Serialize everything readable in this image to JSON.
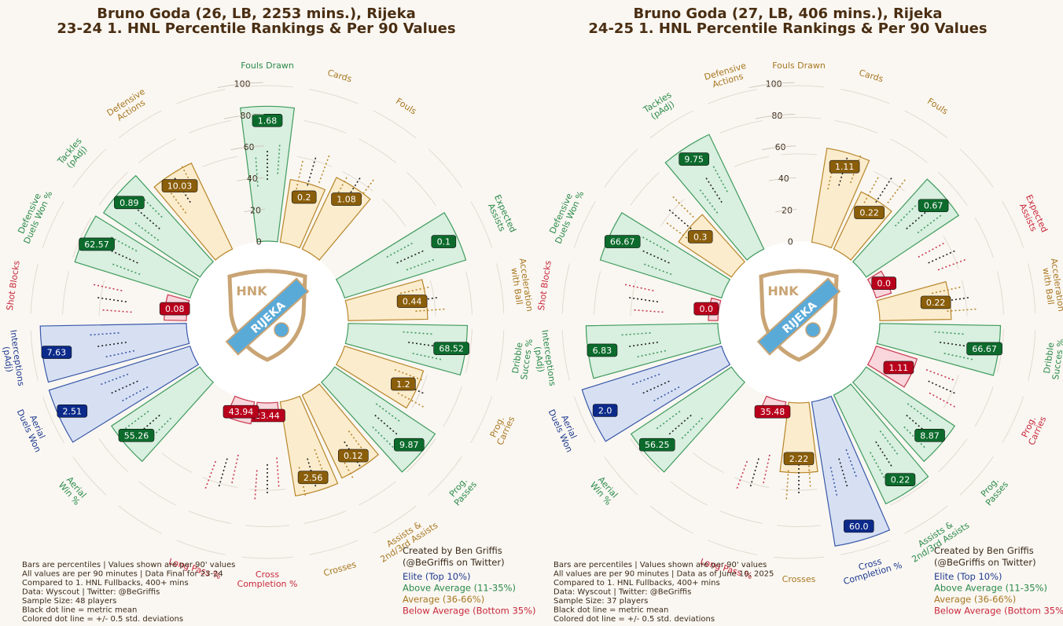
{
  "palette": {
    "elite": {
      "fill": "#d7e0f3",
      "stroke": "#3858a8",
      "text": "#1f3b8f",
      "badge": "#0b2a8a"
    },
    "above": {
      "fill": "#d9efe0",
      "stroke": "#3f9b5d",
      "text": "#2a8a4a",
      "badge": "#0c6b2c"
    },
    "average": {
      "fill": "#fbeccd",
      "stroke": "#b8862a",
      "text": "#a87720",
      "badge": "#8a5e0a"
    },
    "below": {
      "fill": "#f8d6dc",
      "stroke": "#c8384e",
      "text": "#c8283c",
      "badge": "#b8001c"
    }
  },
  "logo": {
    "top": "HNK",
    "band": "RIJEKA",
    "color_outline": "#c9a474",
    "color_band": "#5aaad8"
  },
  "legend": [
    {
      "label": "Elite (Top 10%)",
      "tier": "elite"
    },
    {
      "label": "Above Average (11-35%)",
      "tier": "above"
    },
    {
      "label": "Average (36-66%)",
      "tier": "average"
    },
    {
      "label": "Below Average (Bottom 35%)",
      "tier": "below"
    }
  ],
  "chart_data": [
    {
      "type": "radial_bar",
      "title_line1": "Bruno Goda (26, LB, 2253 mins.), Rijeka",
      "title_line2": "23-24 1. HNL Percentile Rankings & Per 90 Values",
      "radial_ticks": [
        "0",
        "20",
        "40",
        "60",
        "80",
        "100"
      ],
      "footnotes": [
        "Bars are percentiles | Values shown are per 90' values",
        "All values are per 90 minutes | Data Final for 23-24",
        "Compared to 1. HNL Fullbacks, 400+ mins",
        "Data: Wyscout | Twitter: @BeGriffis",
        "Sample Size: 48 players",
        "Black dot line = metric mean",
        "Colored dot line = +/- 0.5 std. deviations"
      ],
      "credit": [
        "Created by Ben Griffis",
        "(@BeGriffis on Twitter)"
      ],
      "metrics": [
        {
          "label": "Fouls Drawn",
          "value": "1.68",
          "percentile": 85,
          "tier": "above"
        },
        {
          "label": "Cards",
          "value": "0.2",
          "percentile": 40,
          "tier": "average"
        },
        {
          "label": "Fouls",
          "value": "1.08",
          "percentile": 50,
          "tier": "average"
        },
        {
          "label": "",
          "value": "",
          "percentile": 0,
          "tier": "average"
        },
        {
          "label": "Expected Assists",
          "value": "0.1",
          "percentile": 80,
          "tier": "above"
        },
        {
          "label": "Acceleration with Ball",
          "value": "0.44",
          "percentile": 50,
          "tier": "average"
        },
        {
          "label": "Dribble Succes %",
          "value": "68.52",
          "percentile": 75,
          "tier": "above"
        },
        {
          "label": "Prog. Carries",
          "value": "1.2",
          "percentile": 52,
          "tier": "average"
        },
        {
          "label": "Prog. Passes",
          "value": "9.87",
          "percentile": 76,
          "tier": "above"
        },
        {
          "label": "Assists & 2nd/3rd Assists",
          "value": "0.12",
          "percentile": 58,
          "tier": "average"
        },
        {
          "label": "Crosses",
          "value": "2.56",
          "percentile": 60,
          "tier": "average"
        },
        {
          "label": "Cross Completion %",
          "value": "23.44",
          "percentile": 8,
          "tier": "below"
        },
        {
          "label": "Long Pass %",
          "value": "43.94",
          "percentile": 14,
          "tier": "below"
        },
        {
          "label": "",
          "value": "",
          "percentile": 0,
          "tier": "average"
        },
        {
          "label": "Aerial Win %",
          "value": "55.26",
          "percentile": 67,
          "tier": "above"
        },
        {
          "label": "Aerial Duels Won",
          "value": "2.51",
          "percentile": 93,
          "tier": "elite"
        },
        {
          "label": "Interceptions (pAdj)",
          "value": "7.63",
          "percentile": 92,
          "tier": "elite"
        },
        {
          "label": "Shot Blocks",
          "value": "0.08",
          "percentile": 14,
          "tier": "below"
        },
        {
          "label": "Defensive Duels Won %",
          "value": "62.57",
          "percentile": 76,
          "tier": "above"
        },
        {
          "label": "Tackles (pAdj)",
          "value": "0.89",
          "percentile": 73,
          "tier": "above"
        },
        {
          "label": "Defensive Actions",
          "value": "10.03",
          "percentile": 60,
          "tier": "average"
        },
        {
          "label": "",
          "value": "",
          "percentile": 0,
          "tier": "average"
        }
      ]
    },
    {
      "type": "radial_bar",
      "title_line1": "Bruno Goda (27, LB, 406 mins.), Rijeka",
      "title_line2": "24-25 1. HNL Percentile Rankings & Per 90 Values",
      "radial_ticks": [
        "0",
        "20",
        "40",
        "60",
        "80",
        "100"
      ],
      "footnotes": [
        "Bars are percentiles | Values shown are per 90' values",
        "All values are per 90 minutes | Data as of June 10, 2025",
        "Compared to 1. HNL Fullbacks, 400+ mins",
        "Data: Wyscout | Twitter: @BeGriffis",
        "Sample Size: 37 players",
        "Black dot line = metric mean",
        "Colored dot line = +/- 0.5 std. deviations"
      ],
      "credit": [
        "Created by Ben Griffis",
        "(@BeGriffis on Twitter)"
      ],
      "metrics": [
        {
          "label": "Fouls Drawn",
          "value": "",
          "percentile": 0,
          "tier": "average"
        },
        {
          "label": "Cards",
          "value": "1.11",
          "percentile": 60,
          "tier": "average"
        },
        {
          "label": "Fouls",
          "value": "0.22",
          "percentile": 40,
          "tier": "average"
        },
        {
          "label": "",
          "value": "0.67",
          "percentile": 70,
          "tier": "above"
        },
        {
          "label": "Expected Assists",
          "value": "0.0",
          "percentile": 10,
          "tier": "below"
        },
        {
          "label": "Acceleration with Ball",
          "value": "0.22",
          "percentile": 45,
          "tier": "average"
        },
        {
          "label": "Dribble Succes %",
          "value": "66.67",
          "percentile": 76,
          "tier": "above"
        },
        {
          "label": "Prog. Carries",
          "value": "1.11",
          "percentile": 27,
          "tier": "below"
        },
        {
          "label": "Prog. Passes",
          "value": "8.87",
          "percentile": 67,
          "tier": "above"
        },
        {
          "label": "Assists & 2nd/3rd Assists",
          "value": "0.22",
          "percentile": 76,
          "tier": "above"
        },
        {
          "label": "Cross Completion %",
          "value": "60.0",
          "percentile": 92,
          "tier": "elite"
        },
        {
          "label": "Crosses",
          "value": "2.22",
          "percentile": 44,
          "tier": "average"
        },
        {
          "label": "Long Pass %",
          "value": "35.48",
          "percentile": 10,
          "tier": "below"
        },
        {
          "label": "",
          "value": "",
          "percentile": 0,
          "tier": "average"
        },
        {
          "label": "Aerial Win %",
          "value": "56.25",
          "percentile": 76,
          "tier": "above"
        },
        {
          "label": "Aerial Duels Won",
          "value": "2.0",
          "percentile": 92,
          "tier": "elite"
        },
        {
          "label": "Interceptions (pAdj)",
          "value": "6.83",
          "percentile": 83,
          "tier": "above"
        },
        {
          "label": "Shot Blocks",
          "value": "0.0",
          "percentile": 6,
          "tier": "below"
        },
        {
          "label": "Defensive Duels Won %",
          "value": "66.67",
          "percentile": 80,
          "tier": "above"
        },
        {
          "label": "",
          "value": "0.3",
          "percentile": 40,
          "tier": "average"
        },
        {
          "label": "Tackles (pAdj)",
          "value": "9.75",
          "percentile": 80,
          "tier": "above"
        },
        {
          "label": "Defensive Actions",
          "value": "",
          "percentile": 0,
          "tier": "average"
        }
      ]
    }
  ]
}
